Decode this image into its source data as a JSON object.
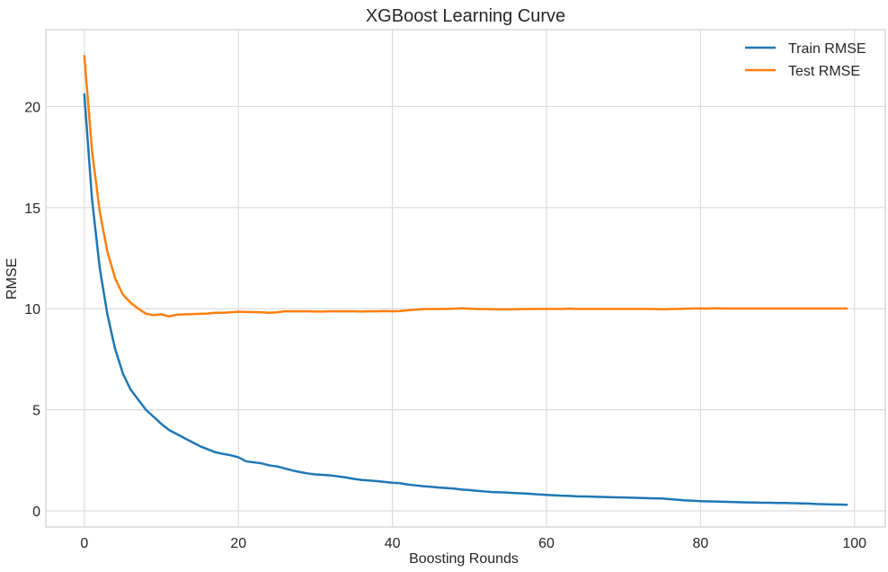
{
  "chart_data": {
    "type": "line",
    "title": "XGBoost Learning Curve",
    "xlabel": "Boosting Rounds",
    "ylabel": "RMSE",
    "xlim": [
      -5,
      104
    ],
    "ylim": [
      -0.8,
      23.8
    ],
    "xticks": [
      0,
      20,
      40,
      60,
      80,
      100
    ],
    "yticks": [
      0,
      5,
      10,
      15,
      20
    ],
    "grid": true,
    "legend_position": "top-right",
    "series": [
      {
        "name": "Train RMSE",
        "color": "#1f77b4",
        "x": [
          0,
          1,
          2,
          3,
          4,
          5,
          6,
          7,
          8,
          9,
          10,
          11,
          12,
          13,
          14,
          15,
          16,
          17,
          18,
          19,
          20,
          21,
          22,
          23,
          24,
          25,
          26,
          27,
          28,
          29,
          30,
          31,
          32,
          33,
          34,
          35,
          36,
          37,
          38,
          39,
          40,
          41,
          42,
          43,
          44,
          45,
          46,
          47,
          48,
          49,
          50,
          51,
          52,
          53,
          54,
          55,
          56,
          57,
          58,
          59,
          60,
          61,
          62,
          63,
          64,
          65,
          66,
          67,
          68,
          69,
          70,
          71,
          72,
          73,
          74,
          75,
          76,
          77,
          78,
          79,
          80,
          81,
          82,
          83,
          84,
          85,
          86,
          87,
          88,
          89,
          90,
          91,
          92,
          93,
          94,
          95,
          96,
          97,
          98,
          99
        ],
        "y": [
          20.6,
          15.4,
          12.0,
          9.7,
          8.0,
          6.8,
          6.0,
          5.5,
          5.0,
          4.65,
          4.3,
          4.0,
          3.8,
          3.6,
          3.4,
          3.2,
          3.05,
          2.9,
          2.82,
          2.75,
          2.65,
          2.45,
          2.4,
          2.35,
          2.25,
          2.2,
          2.1,
          2.0,
          1.92,
          1.85,
          1.8,
          1.78,
          1.75,
          1.7,
          1.65,
          1.58,
          1.53,
          1.5,
          1.47,
          1.43,
          1.39,
          1.37,
          1.3,
          1.26,
          1.22,
          1.19,
          1.15,
          1.13,
          1.1,
          1.05,
          1.03,
          0.99,
          0.96,
          0.93,
          0.92,
          0.9,
          0.88,
          0.86,
          0.84,
          0.81,
          0.79,
          0.77,
          0.75,
          0.74,
          0.72,
          0.71,
          0.7,
          0.69,
          0.68,
          0.67,
          0.66,
          0.65,
          0.64,
          0.63,
          0.62,
          0.61,
          0.58,
          0.55,
          0.52,
          0.5,
          0.48,
          0.47,
          0.46,
          0.45,
          0.44,
          0.43,
          0.42,
          0.41,
          0.4,
          0.4,
          0.39,
          0.39,
          0.38,
          0.37,
          0.36,
          0.34,
          0.33,
          0.32,
          0.31,
          0.3
        ]
      },
      {
        "name": "Test RMSE",
        "color": "#ff7f0e",
        "x": [
          0,
          1,
          2,
          3,
          4,
          5,
          6,
          7,
          8,
          9,
          10,
          11,
          12,
          13,
          14,
          15,
          16,
          17,
          18,
          19,
          20,
          21,
          22,
          23,
          24,
          25,
          26,
          27,
          28,
          29,
          30,
          31,
          32,
          33,
          34,
          35,
          36,
          37,
          38,
          39,
          40,
          41,
          42,
          43,
          44,
          45,
          46,
          47,
          48,
          49,
          50,
          51,
          52,
          53,
          54,
          55,
          56,
          57,
          58,
          59,
          60,
          61,
          62,
          63,
          64,
          65,
          66,
          67,
          68,
          69,
          70,
          71,
          72,
          73,
          74,
          75,
          76,
          77,
          78,
          79,
          80,
          81,
          82,
          83,
          84,
          85,
          86,
          87,
          88,
          89,
          90,
          91,
          92,
          93,
          94,
          95,
          96,
          97,
          98,
          99
        ],
        "y": [
          22.5,
          17.8,
          14.8,
          12.8,
          11.5,
          10.7,
          10.3,
          10.0,
          9.75,
          9.68,
          9.72,
          9.62,
          9.7,
          9.72,
          9.73,
          9.75,
          9.76,
          9.8,
          9.8,
          9.82,
          9.85,
          9.84,
          9.83,
          9.82,
          9.8,
          9.82,
          9.87,
          9.87,
          9.87,
          9.87,
          9.86,
          9.86,
          9.87,
          9.87,
          9.87,
          9.87,
          9.86,
          9.87,
          9.87,
          9.88,
          9.87,
          9.88,
          9.92,
          9.95,
          9.98,
          9.98,
          9.98,
          9.99,
          10.0,
          10.02,
          10.0,
          9.98,
          9.98,
          9.97,
          9.97,
          9.97,
          9.97,
          9.98,
          9.98,
          9.99,
          9.99,
          9.99,
          9.99,
          10.0,
          9.99,
          9.99,
          9.99,
          9.99,
          9.99,
          9.99,
          9.99,
          9.99,
          9.99,
          9.99,
          9.98,
          9.97,
          9.98,
          9.99,
          10.0,
          10.01,
          10.01,
          10.01,
          10.02,
          10.01,
          10.01,
          10.01,
          10.01,
          10.01,
          10.01,
          10.01,
          10.01,
          10.01,
          10.01,
          10.01,
          10.01,
          10.01,
          10.01,
          10.01,
          10.01,
          10.01
        ]
      }
    ]
  }
}
